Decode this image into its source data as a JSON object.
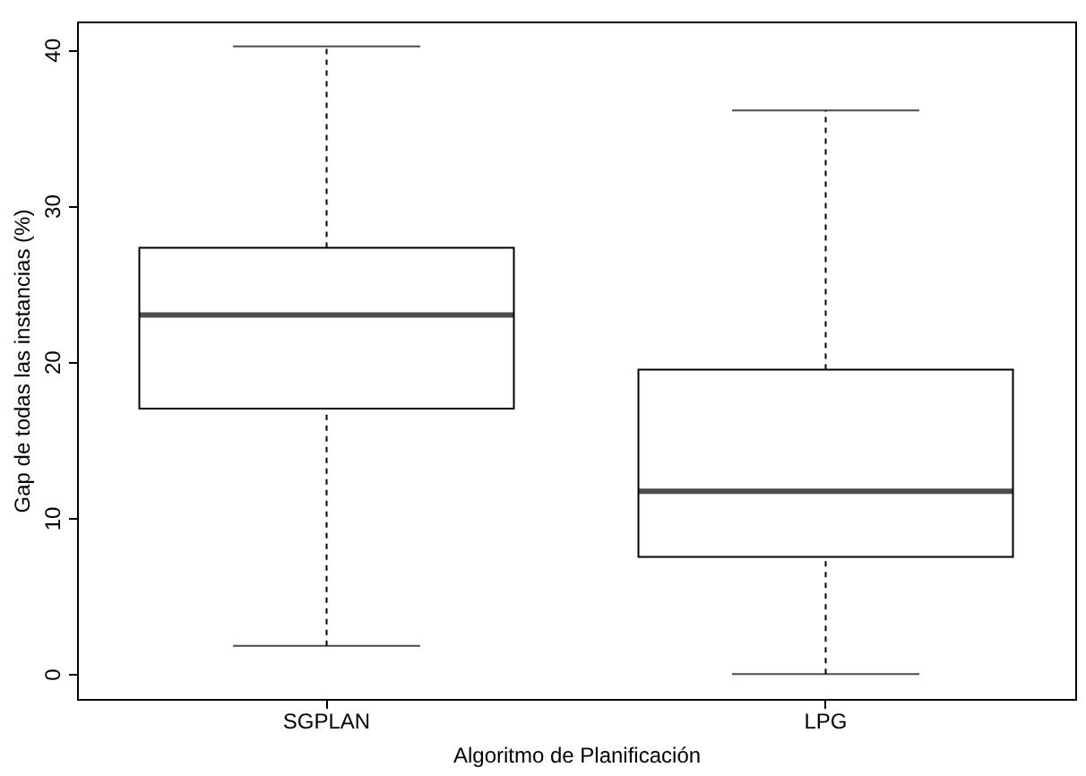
{
  "chart_data": {
    "type": "box",
    "xlabel": "Algoritmo de Planificación",
    "ylabel": "Gap de todas las instancias (%)",
    "categories": [
      "SGPLAN",
      "LPG"
    ],
    "boxes": [
      {
        "low": 1.8,
        "q1": 17,
        "median": 23,
        "q3": 27.3,
        "high": 40.2
      },
      {
        "low": 0,
        "q1": 7.5,
        "median": 11.7,
        "q3": 19.5,
        "high": 36.1
      }
    ],
    "ylim": [
      -1.6,
      41.8
    ],
    "yticks": [
      0,
      10,
      20,
      30,
      40
    ],
    "grid": false,
    "line_style": "dashed"
  }
}
